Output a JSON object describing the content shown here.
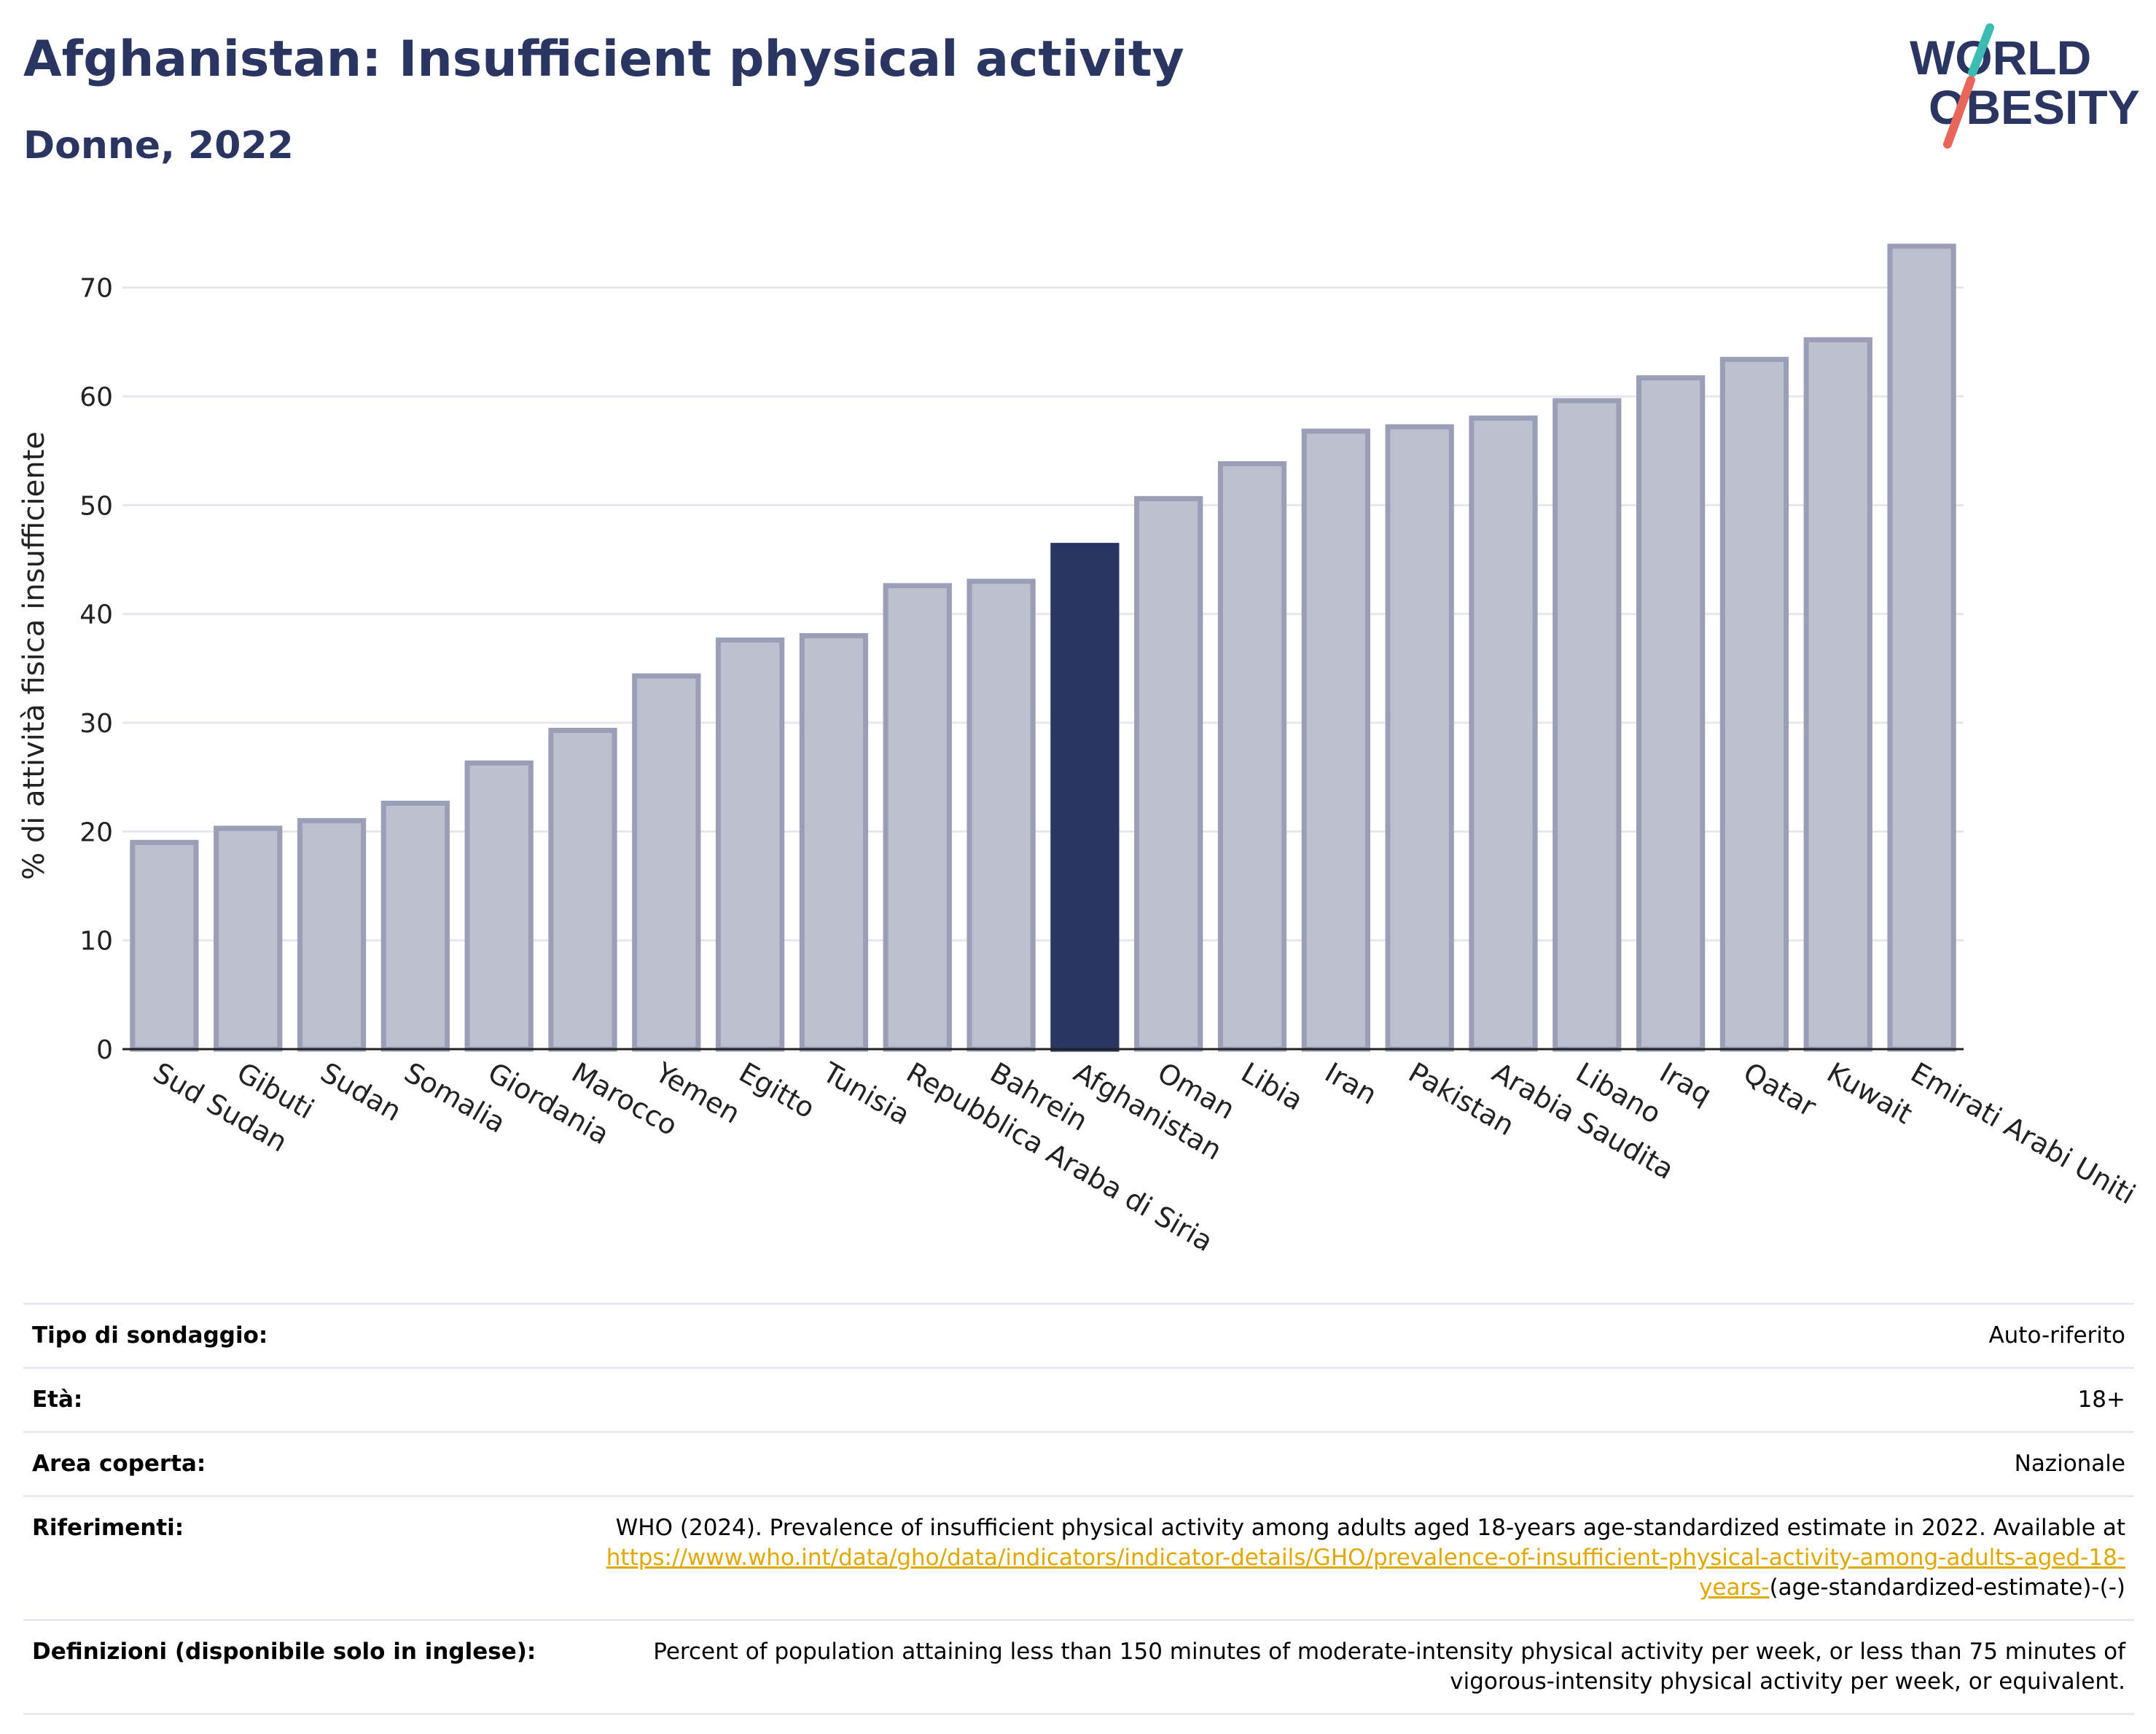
{
  "header": {
    "title": "Afghanistan: Insufficient physical activity",
    "subtitle": "Donne, 2022"
  },
  "logo": {
    "line1": "WORLD",
    "line2": "OBESITY"
  },
  "colors": {
    "bar": "#bdc0cf",
    "bar_border": "#9a9eb6",
    "highlight": "#2a3561",
    "title": "#2a3561",
    "link": "#e0a800",
    "grid": "#e6e7ec"
  },
  "chart_data": {
    "type": "bar",
    "ylabel": "% di attività fisica insufficiente",
    "ylim": [
      0,
      75
    ],
    "yticks": [
      0,
      10,
      20,
      30,
      40,
      50,
      60,
      70
    ],
    "grid": true,
    "highlight": "Afghanistan",
    "categories": [
      "Sud Sudan",
      "Gibuti",
      "Sudan",
      "Somalia",
      "Giordania",
      "Marocco",
      "Yemen",
      "Egitto",
      "Tunisia",
      "Repubblica Araba di Siria",
      "Bahrein",
      "Afghanistan",
      "Oman",
      "Libia",
      "Iran",
      "Pakistan",
      "Arabia Saudita",
      "Libano",
      "Iraq",
      "Qatar",
      "Kuwait",
      "Emirati Arabi Uniti"
    ],
    "values": [
      19.0,
      20.3,
      21.0,
      22.6,
      26.3,
      29.3,
      34.3,
      37.6,
      38.0,
      42.6,
      43.0,
      46.3,
      50.6,
      53.8,
      56.8,
      57.2,
      58.0,
      59.6,
      61.7,
      63.4,
      65.2,
      73.8
    ]
  },
  "info": {
    "survey_type": {
      "label": "Tipo di sondaggio:",
      "value": "Auto-riferito"
    },
    "age": {
      "label": "Età:",
      "value": "18+"
    },
    "coverage": {
      "label": "Area coperta:",
      "value": "Nazionale"
    },
    "references": {
      "label": "Riferimenti:",
      "text": "WHO (2024). Prevalence of insufficient physical activity among adults aged 18-years age-standardized estimate in 2022. Available at",
      "link": "https://www.who.int/data/gho/data/indicators/indicator-details/GHO/prevalence-of-insufficient-physical-activity-among-adults-aged-18-years-",
      "suffix": "(age-standardized-estimate)-(-)"
    },
    "definitions": {
      "label": "Definizioni (disponibile solo in inglese):",
      "value": "Percent of population attaining less than 150 minutes of moderate-intensity physical activity per week, or less than 75 minutes of vigorous-intensity physical activity per week, or equivalent."
    }
  }
}
